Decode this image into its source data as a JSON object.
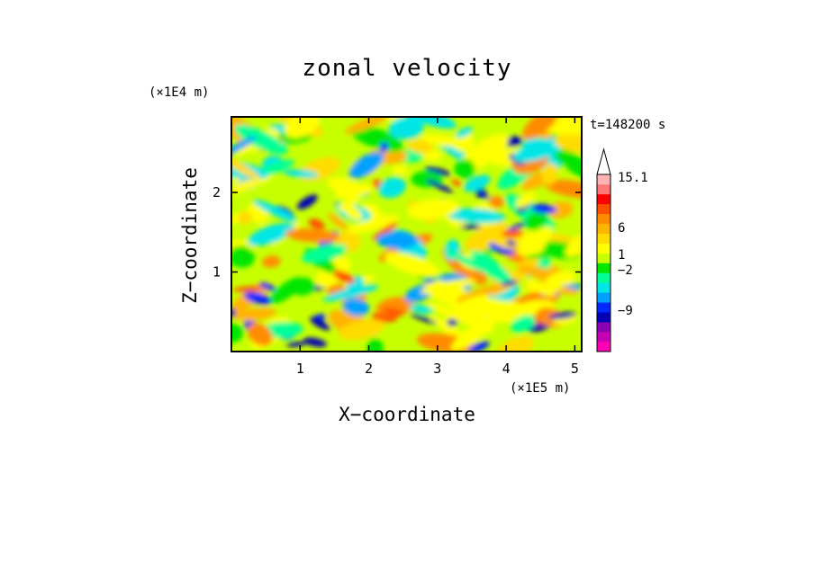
{
  "chart_data": {
    "type": "heatmap",
    "title": "zonal velocity",
    "xlabel": "X−coordinate",
    "ylabel": "Z−coordinate",
    "x_unit": "(×1E5 m)",
    "y_unit": "(×1E4 m)",
    "time_label": "t=148200 s",
    "xlim": [
      0,
      5.1
    ],
    "ylim": [
      0,
      2.95
    ],
    "x_ticks": [
      1,
      2,
      3,
      4,
      5
    ],
    "x_tick_labels": [
      "1",
      "2",
      "3",
      "4",
      "5"
    ],
    "y_ticks": [
      1,
      2
    ],
    "y_tick_labels": [
      "1",
      "2"
    ],
    "colorbar": {
      "colors": [
        "#ff00b4",
        "#c800b4",
        "#8c00b4",
        "#0000b4",
        "#0028ff",
        "#00a0ff",
        "#00e6e6",
        "#00ff96",
        "#00e600",
        "#c8ff00",
        "#ffff00",
        "#ffdc00",
        "#ffb400",
        "#ff8c00",
        "#ff5000",
        "#ff0000",
        "#ff7878",
        "#ffb4b4"
      ],
      "labels": [
        "15.1",
        "6",
        "1",
        "−2",
        "−9"
      ],
      "extend_top": true
    },
    "field_summary": {
      "dominant_values": "0 to 3",
      "max_shown": 15.1,
      "min_shown": -9
    }
  }
}
